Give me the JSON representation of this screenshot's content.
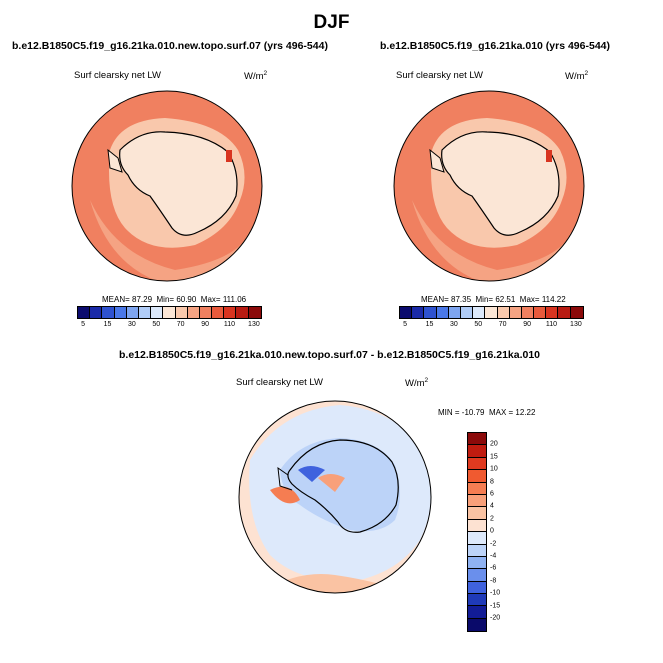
{
  "main_title": "DJF",
  "chart_data": [
    {
      "type": "heatmap",
      "projection": "south-polar-stereographic",
      "title": "b.e12.B1850C5.f19_g16.21ka.010.new.topo.surf.07 (yrs 496-544)",
      "variable": "Surf clearsky net LW",
      "units": "W/m",
      "units_exp": "2",
      "stats": {
        "mean_label": "MEAN=",
        "mean": "87.29",
        "min_label": "Min=",
        "min": "60.90",
        "max_label": "Max=",
        "max": "111.06"
      },
      "colorbar": {
        "orientation": "horizontal",
        "levels": [
          "5",
          "15",
          "30",
          "50",
          "70",
          "90",
          "110",
          "130"
        ],
        "colors": [
          "#0b0b6e",
          "#1a2aa8",
          "#2e52d0",
          "#4a78e8",
          "#7ea5f0",
          "#b0ccf7",
          "#dce9fb",
          "#fbe6d6",
          "#f9c8ac",
          "#f5a383",
          "#f08060",
          "#e85a3c",
          "#d83420",
          "#b81b12",
          "#8b0a0a"
        ]
      }
    },
    {
      "type": "heatmap",
      "projection": "south-polar-stereographic",
      "title": "b.e12.B1850C5.f19_g16.21ka.010 (yrs 496-544)",
      "variable": "Surf clearsky net LW",
      "units": "W/m",
      "units_exp": "2",
      "stats": {
        "mean_label": "MEAN=",
        "mean": "87.35",
        "min_label": "Min=",
        "min": "62.51",
        "max_label": "Max=",
        "max": "114.22"
      },
      "colorbar": {
        "orientation": "horizontal",
        "levels": [
          "5",
          "15",
          "30",
          "50",
          "70",
          "90",
          "110",
          "130"
        ],
        "colors": [
          "#0b0b6e",
          "#1a2aa8",
          "#2e52d0",
          "#4a78e8",
          "#7ea5f0",
          "#b0ccf7",
          "#dce9fb",
          "#fbe6d6",
          "#f9c8ac",
          "#f5a383",
          "#f08060",
          "#e85a3c",
          "#d83420",
          "#b81b12",
          "#8b0a0a"
        ]
      }
    },
    {
      "type": "heatmap",
      "projection": "south-polar-stereographic",
      "title": "b.e12.B1850C5.f19_g16.21ka.010.new.topo.surf.07 - b.e12.B1850C5.f19_g16.21ka.010",
      "variable": "Surf clearsky net LW",
      "units": "W/m",
      "units_exp": "2",
      "stats": {
        "min_label": "MIN =",
        "min": "-10.79",
        "max_label": "MAX =",
        "max": "12.22"
      },
      "colorbar": {
        "orientation": "vertical",
        "levels": [
          "20",
          "15",
          "10",
          "8",
          "6",
          "4",
          "2",
          "0",
          "-2",
          "-4",
          "-6",
          "-8",
          "-10",
          "-15",
          "-20"
        ],
        "colors": [
          "#8b0a0a",
          "#c01c10",
          "#e03a20",
          "#f05a30",
          "#f57d52",
          "#f8a07a",
          "#fac3a3",
          "#fde2d2",
          "#dde9fb",
          "#bcd3f8",
          "#8fb2f2",
          "#6a8fec",
          "#3f62de",
          "#1f3ab8",
          "#121c96",
          "#0a0a6a"
        ]
      }
    }
  ]
}
